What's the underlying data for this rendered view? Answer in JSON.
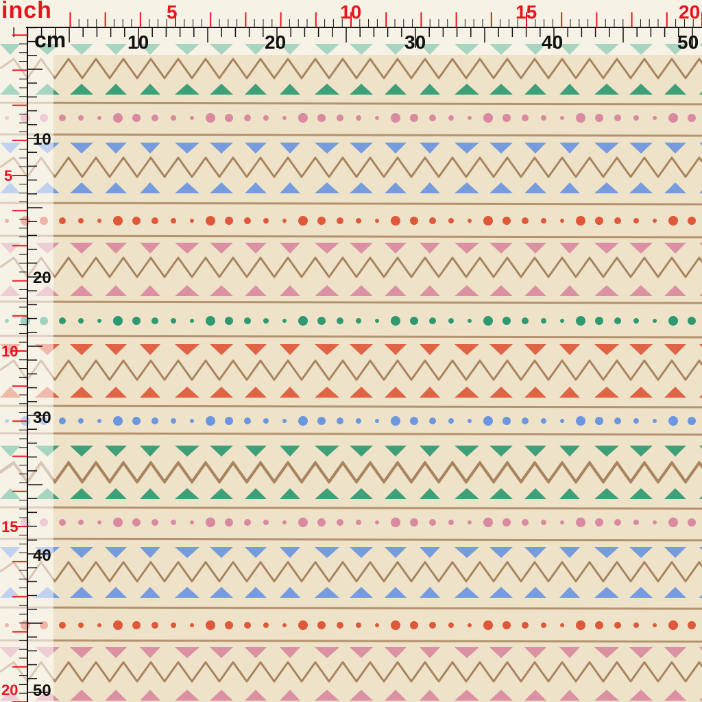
{
  "ruler": {
    "inch_unit": "inch",
    "cm_unit": "cm",
    "inch_top_labels": [
      "5",
      "10",
      "15",
      "20"
    ],
    "inch_left_labels": [
      "5",
      "10",
      "15",
      "20"
    ],
    "cm_top_labels": [
      "10",
      "20",
      "30",
      "40",
      "50"
    ],
    "cm_left_labels": [
      "10",
      "20",
      "30",
      "40",
      "50"
    ],
    "colors": {
      "inch": "#e8141c",
      "cm": "#111111"
    }
  },
  "fabric": {
    "background": "#eee3c8",
    "stripe_colors": {
      "line": "#a8845f",
      "teal": "#2f9a72",
      "pink": "#d98aa0",
      "blue": "#6c96e0",
      "orange": "#e0583a"
    },
    "pattern_rows": [
      "zigzag",
      "teal-triangles-up",
      "line",
      "pink-dots",
      "line",
      "blue-triangles-down",
      "zigzag",
      "blue-triangles-up",
      "line",
      "orange-dots",
      "line",
      "pink-triangles-down",
      "zigzag",
      "pink-triangles-up",
      "line",
      "teal-dots",
      "line",
      "orange-triangles-down",
      "zigzag",
      "orange-triangles-up",
      "line",
      "blue-dots",
      "line",
      "teal-triangles-down",
      "zigzag"
    ]
  }
}
